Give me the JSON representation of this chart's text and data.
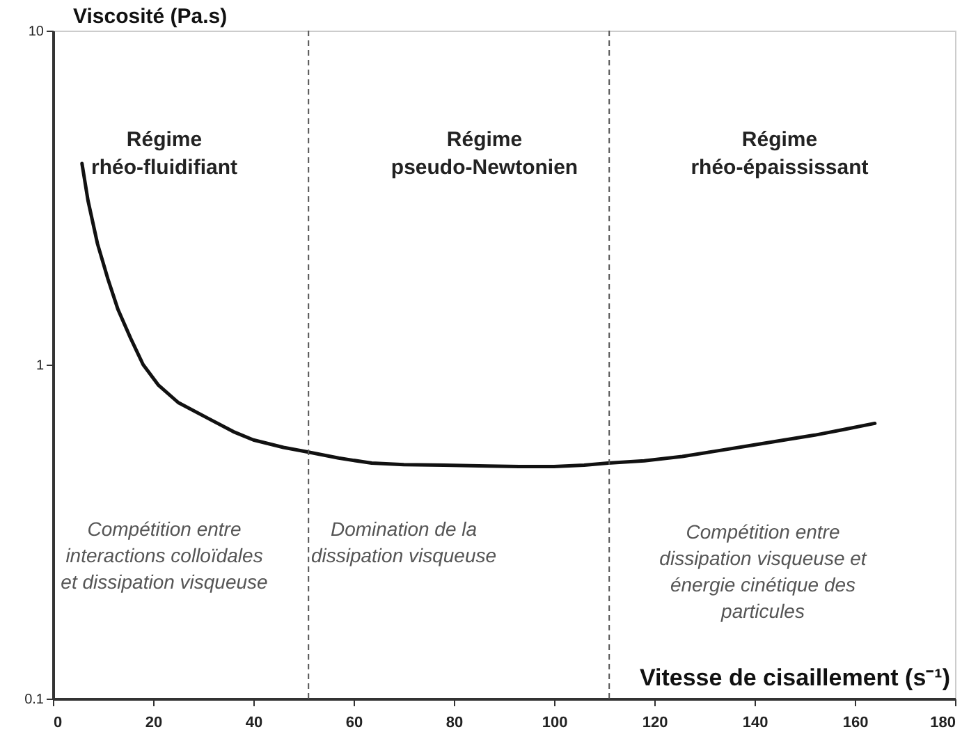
{
  "chart_data": {
    "type": "line",
    "xlabel": "Vitesse de cisaillement (s⁻¹)",
    "ylabel": "Viscosité (Pa.s)",
    "x": [
      5.8,
      7,
      8.9,
      11,
      13,
      15.5,
      18,
      21,
      25,
      31,
      36,
      40,
      46,
      51,
      57,
      63.6,
      70,
      78,
      86.7,
      93,
      100,
      106,
      110.8,
      118,
      125.6,
      132,
      139.4,
      146,
      152,
      158,
      164
    ],
    "series": [
      {
        "color": "#111111",
        "values": [
          4.0,
          3.1,
          2.3,
          1.8,
          1.46,
          1.2,
          1.0,
          0.87,
          0.77,
          0.69,
          0.63,
          0.595,
          0.565,
          0.547,
          0.525,
          0.507,
          0.502,
          0.5,
          0.497,
          0.495,
          0.495,
          0.5,
          0.507,
          0.515,
          0.531,
          0.55,
          0.573,
          0.595,
          0.615,
          0.64,
          0.667
        ]
      }
    ],
    "xlim": [
      0,
      180
    ],
    "xticks": [
      0,
      20,
      40,
      60,
      80,
      100,
      120,
      140,
      160,
      180
    ],
    "ylim": [
      0.1,
      10
    ],
    "yticks": [
      0.1,
      1,
      10
    ],
    "log": "y",
    "ref_lines": [
      {
        "axis": "x",
        "value": 51,
        "color": "#555555",
        "line_style": "dashed"
      },
      {
        "axis": "x",
        "value": 111,
        "color": "#555555",
        "line_style": "dashed"
      }
    ],
    "annotations": [
      "Régime\nrhéo-fluidifiant",
      "Régime\npseudo-Newtonien",
      "Régime\nrhéo-épaississant",
      "Compétition entre\ninteractions colloïdales\net dissipation visqueuse",
      "Domination de la\ndissipation visqueuse",
      "Compétition entre\ndissipation visqueuse et\nénergie cinétique des\nparticules"
    ]
  }
}
